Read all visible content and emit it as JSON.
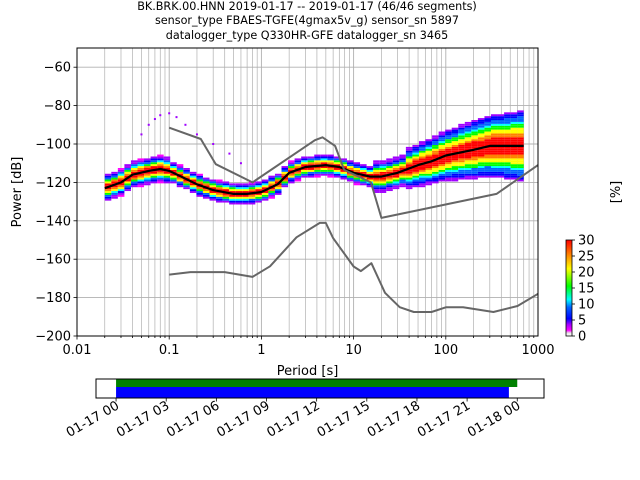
{
  "title_lines": [
    "BK.BRK.00.HNN   2019-01-17 -- 2019-01-17  (46/46 segments)",
    "sensor_type FBAES-TGFE(4gmax5v_g) sensor_sn 5897",
    "datalogger_type Q330HR-GFE datalogger_sn 3465"
  ],
  "chart_data": [
    {
      "type": "heatmap",
      "xlabel": "Period [s]",
      "ylabel": "Power [dB]",
      "xscale": "log",
      "xlim": [
        0.01,
        1000
      ],
      "ylim": [
        -200,
        -50
      ],
      "x_ticks": [
        {
          "value": 0.01,
          "label": "0.01"
        },
        {
          "value": 0.1,
          "label": "0.1"
        },
        {
          "value": 1,
          "label": "1"
        },
        {
          "value": 10,
          "label": "10"
        },
        {
          "value": 100,
          "label": "100"
        },
        {
          "value": 1000,
          "label": "1000"
        }
      ],
      "y_ticks": [
        {
          "value": -60,
          "label": "−60"
        },
        {
          "value": -80,
          "label": "−80"
        },
        {
          "value": -100,
          "label": "−100"
        },
        {
          "value": -120,
          "label": "−120"
        },
        {
          "value": -140,
          "label": "−140"
        },
        {
          "value": -160,
          "label": "−160"
        },
        {
          "value": -180,
          "label": "−180"
        },
        {
          "value": -200,
          "label": "−200"
        }
      ],
      "grid": true,
      "colorbar": {
        "label": "[%]",
        "range": [
          0,
          30
        ],
        "ticks": [
          "0",
          "5",
          "10",
          "15",
          "20",
          "25",
          "30"
        ],
        "colormap": "pqlx"
      },
      "series": [
        {
          "role": "mode",
          "color": "#000000",
          "points": [
            [
              0.02,
              -123
            ],
            [
              0.03,
              -120
            ],
            [
              0.04,
              -116
            ],
            [
              0.06,
              -114
            ],
            [
              0.08,
              -113
            ],
            [
              0.1,
              -114
            ],
            [
              0.15,
              -118
            ],
            [
              0.2,
              -121
            ],
            [
              0.3,
              -124
            ],
            [
              0.5,
              -126
            ],
            [
              0.7,
              -126
            ],
            [
              1,
              -125
            ],
            [
              1.5,
              -121
            ],
            [
              2,
              -115
            ],
            [
              3,
              -112
            ],
            [
              5,
              -111
            ],
            [
              7,
              -112
            ],
            [
              10,
              -115
            ],
            [
              15,
              -117
            ],
            [
              20,
              -117
            ],
            [
              30,
              -115
            ],
            [
              50,
              -111
            ],
            [
              70,
              -109
            ],
            [
              100,
              -106
            ],
            [
              200,
              -103
            ],
            [
              300,
              -101
            ],
            [
              700,
              -101
            ]
          ]
        },
        {
          "role": "new-high-noise-model",
          "color": "#666666",
          "points": [
            [
              0.1,
              -91.5
            ],
            [
              0.22,
              -97.4
            ],
            [
              0.32,
              -110.5
            ],
            [
              0.8,
              -120
            ],
            [
              3.8,
              -98
            ],
            [
              4.6,
              -96.5
            ],
            [
              6.3,
              -101
            ],
            [
              7.9,
              -113.5
            ],
            [
              15.4,
              -120
            ],
            [
              20,
              -138.5
            ],
            [
              354.8,
              -126
            ],
            [
              1000,
              -111
            ]
          ]
        },
        {
          "role": "new-low-noise-model",
          "color": "#666666",
          "points": [
            [
              0.1,
              -168
            ],
            [
              0.17,
              -166.7
            ],
            [
              0.4,
              -166.7
            ],
            [
              0.8,
              -169.2
            ],
            [
              1.24,
              -163.7
            ],
            [
              2.4,
              -148.6
            ],
            [
              4.3,
              -141.1
            ],
            [
              5,
              -141.1
            ],
            [
              6,
              -149
            ],
            [
              10,
              -163.8
            ],
            [
              12,
              -166.2
            ],
            [
              15.6,
              -162.1
            ],
            [
              21.9,
              -177.5
            ],
            [
              31.6,
              -185
            ],
            [
              45,
              -187.5
            ],
            [
              70,
              -187.5
            ],
            [
              101,
              -185
            ],
            [
              154,
              -185
            ],
            [
              328,
              -187.5
            ],
            [
              600,
              -184.4
            ],
            [
              1000,
              -178
            ]
          ]
        }
      ],
      "histogram_range": {
        "x_from": 0.02,
        "x_to": 700
      }
    },
    {
      "type": "bar",
      "role": "data-coverage",
      "x_ticks": [
        "01-17 00",
        "01-17 03",
        "01-17 06",
        "01-17 09",
        "01-17 12",
        "01-17 15",
        "01-17 18",
        "01-17 21",
        "01-18 00"
      ],
      "xlim_hours": [
        -1.2,
        25.6
      ],
      "bars": [
        {
          "name": "data",
          "color": "#008000",
          "start_hour": 0,
          "end_hour": 24
        },
        {
          "name": "psd-segments",
          "color": "#0000ff",
          "start_hour": 0,
          "end_hour": 23.5
        }
      ]
    }
  ]
}
